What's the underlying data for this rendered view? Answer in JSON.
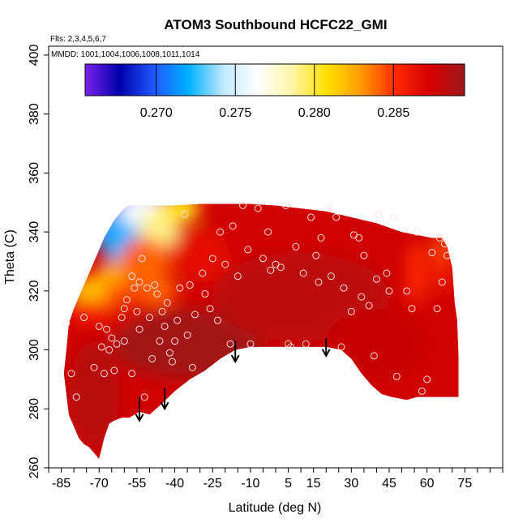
{
  "chart_data": {
    "type": "heatmap",
    "title": "ATOM3 Southbound HCFC22_GMI",
    "flights_note": "Flts: 2,3,4,5,6,7",
    "mmdd_note": "MMDD: 1001,1004,1006,1008,1011,1014",
    "xlabel": "Latitude (deg N)",
    "ylabel": "Theta (C)",
    "xlim": [
      -90,
      90
    ],
    "ylim": [
      260,
      403
    ],
    "x_ticks": [
      -85,
      -70,
      -55,
      -40,
      -25,
      -10,
      5,
      15,
      30,
      45,
      60,
      75
    ],
    "x_tick_labels": [
      "-85",
      "-70",
      "-55",
      "-40",
      "-25",
      "-10",
      "5",
      "15",
      "30",
      "45",
      "60",
      "75"
    ],
    "y_ticks": [
      260,
      280,
      300,
      320,
      340,
      360,
      380,
      400
    ],
    "y_tick_labels": [
      "260",
      "280",
      "300",
      "320",
      "340",
      "360",
      "380",
      "400"
    ],
    "colorbar": {
      "range": [
        0.2655,
        0.2895
      ],
      "ticks": [
        0.27,
        0.275,
        0.28,
        0.285
      ],
      "tick_labels": [
        "0.270",
        "0.275",
        "0.280",
        "0.285"
      ],
      "stops": [
        "#7a22ee",
        "#0000aa",
        "#1e58ff",
        "#00b0ff",
        "#bfe8ff",
        "#ffffff",
        "#fff4a8",
        "#ffe000",
        "#ff9a00",
        "#ff2a00",
        "#d40000",
        "#9e1818"
      ]
    },
    "boundary_top": [
      [
        -82,
        309
      ],
      [
        -80,
        314
      ],
      [
        -78,
        318
      ],
      [
        -76,
        322
      ],
      [
        -74,
        326
      ],
      [
        -72,
        330
      ],
      [
        -70,
        334
      ],
      [
        -68,
        338
      ],
      [
        -66,
        341
      ],
      [
        -64,
        344
      ],
      [
        -62,
        346
      ],
      [
        -60,
        348
      ],
      [
        -58,
        349
      ],
      [
        -50,
        349
      ],
      [
        -40,
        349
      ],
      [
        -30,
        349.5
      ],
      [
        -20,
        349.5
      ],
      [
        -10,
        349.5
      ],
      [
        0,
        349
      ],
      [
        10,
        348
      ],
      [
        20,
        347
      ],
      [
        30,
        345
      ],
      [
        40,
        343
      ],
      [
        50,
        340
      ],
      [
        56,
        339
      ],
      [
        62,
        338
      ],
      [
        66,
        338
      ],
      [
        68,
        335
      ],
      [
        70,
        328
      ],
      [
        71,
        316
      ],
      [
        72,
        310
      ],
      [
        72.5,
        298
      ],
      [
        72.5,
        284
      ]
    ],
    "boundary_bottom": [
      [
        72.5,
        284
      ],
      [
        70,
        284
      ],
      [
        60,
        284
      ],
      [
        56,
        284
      ],
      [
        52,
        283
      ],
      [
        46,
        284
      ],
      [
        42,
        285
      ],
      [
        38,
        288
      ],
      [
        34,
        292
      ],
      [
        30,
        297
      ],
      [
        26,
        300
      ],
      [
        20,
        301
      ],
      [
        10,
        301
      ],
      [
        0,
        301
      ],
      [
        -10,
        301
      ],
      [
        -16,
        300
      ],
      [
        -22,
        297
      ],
      [
        -28,
        293
      ],
      [
        -34,
        290
      ],
      [
        -40,
        286
      ],
      [
        -46,
        281
      ],
      [
        -50,
        278
      ],
      [
        -54,
        279
      ],
      [
        -58,
        277
      ],
      [
        -61,
        277
      ],
      [
        -64,
        276
      ],
      [
        -66,
        275
      ],
      [
        -68,
        270
      ],
      [
        -70,
        263
      ],
      [
        -72,
        265
      ],
      [
        -74,
        267
      ],
      [
        -76,
        268
      ],
      [
        -78,
        270
      ],
      [
        -80,
        274
      ],
      [
        -82,
        278
      ],
      [
        -84,
        292
      ],
      [
        -83,
        300
      ],
      [
        -82,
        309
      ]
    ],
    "blobs": [
      {
        "lat": -67,
        "theta": 351,
        "rx": 20,
        "ry": 14,
        "value": 0.2655
      },
      {
        "lat": -61,
        "theta": 338,
        "rx": 9,
        "ry": 9,
        "value": 0.272
      },
      {
        "lat": -52,
        "theta": 347,
        "rx": 10,
        "ry": 6,
        "value": 0.276
      },
      {
        "lat": -46,
        "theta": 341,
        "rx": 8,
        "ry": 7,
        "value": 0.279
      },
      {
        "lat": -38,
        "theta": 348,
        "rx": 8,
        "ry": 5,
        "value": 0.2805
      },
      {
        "lat": -70,
        "theta": 320,
        "rx": 12,
        "ry": 5,
        "value": 0.2815
      },
      {
        "lat": -64,
        "theta": 324,
        "rx": 8,
        "ry": 6,
        "value": 0.2825
      },
      {
        "lat": -52,
        "theta": 330,
        "rx": 10,
        "ry": 8,
        "value": 0.284
      },
      {
        "lat": -60,
        "theta": 318,
        "rx": 8,
        "ry": 5,
        "value": 0.2845
      },
      {
        "lat": -74,
        "theta": 313,
        "rx": 8,
        "ry": 4,
        "value": 0.2855
      },
      {
        "lat": -46,
        "theta": 320,
        "rx": 7,
        "ry": 5,
        "value": 0.284
      },
      {
        "lat": -30,
        "theta": 332,
        "rx": 12,
        "ry": 9,
        "value": 0.2865
      },
      {
        "lat": -56,
        "theta": 310,
        "rx": 12,
        "ry": 7,
        "value": 0.2868
      },
      {
        "lat": 56,
        "theta": 326,
        "rx": 4,
        "ry": 11,
        "value": 0.2852
      },
      {
        "lat": 66,
        "theta": 333,
        "rx": 4,
        "ry": 6,
        "value": 0.2845
      },
      {
        "lat": 66,
        "theta": 325,
        "rx": 3,
        "ry": 6,
        "value": 0.2855
      },
      {
        "lat": -35,
        "theta": 302,
        "rx": 30,
        "ry": 12,
        "value": 0.2893
      },
      {
        "lat": -72,
        "theta": 285,
        "rx": 10,
        "ry": 18,
        "value": 0.2885
      },
      {
        "lat": 10,
        "theta": 318,
        "rx": 35,
        "ry": 15,
        "value": 0.2883
      },
      {
        "lat": 40,
        "theta": 302,
        "rx": 20,
        "ry": 12,
        "value": 0.2878
      }
    ],
    "points": [
      [
        -83,
        309
      ],
      [
        -81,
        292
      ],
      [
        -79,
        284
      ],
      [
        -76,
        311
      ],
      [
        -72,
        294
      ],
      [
        -70,
        308
      ],
      [
        -69,
        301
      ],
      [
        -68,
        292
      ],
      [
        -67,
        307
      ],
      [
        -66,
        300
      ],
      [
        -65,
        304
      ],
      [
        -64,
        293
      ],
      [
        -63,
        302
      ],
      [
        -61,
        311
      ],
      [
        -60,
        314
      ],
      [
        -60,
        303
      ],
      [
        -59,
        317
      ],
      [
        -57,
        325
      ],
      [
        -57,
        292
      ],
      [
        -56,
        321
      ],
      [
        -55,
        313
      ],
      [
        -54,
        323
      ],
      [
        -54,
        307
      ],
      [
        -53,
        331
      ],
      [
        -52,
        284
      ],
      [
        -51,
        321
      ],
      [
        -50,
        311
      ],
      [
        -49,
        297
      ],
      [
        -48,
        322
      ],
      [
        -47,
        319
      ],
      [
        -46,
        303
      ],
      [
        -45,
        313
      ],
      [
        -44,
        308
      ],
      [
        -43,
        316
      ],
      [
        -42,
        299
      ],
      [
        -41,
        296
      ],
      [
        -40,
        303
      ],
      [
        -39,
        310
      ],
      [
        -38,
        321
      ],
      [
        -36,
        346
      ],
      [
        -35,
        305
      ],
      [
        -34,
        322
      ],
      [
        -33,
        294
      ],
      [
        -32,
        312
      ],
      [
        -29,
        326
      ],
      [
        -28,
        319
      ],
      [
        -26,
        314
      ],
      [
        -25,
        331
      ],
      [
        -23,
        310
      ],
      [
        -22,
        340
      ],
      [
        -20,
        329
      ],
      [
        -18,
        302
      ],
      [
        -17,
        342
      ],
      [
        -15,
        325
      ],
      [
        -13,
        349
      ],
      [
        -11,
        334
      ],
      [
        -10,
        302
      ],
      [
        -7,
        348
      ],
      [
        -5,
        331
      ],
      [
        -3,
        340
      ],
      [
        -2,
        327
      ],
      [
        0,
        329
      ],
      [
        2,
        328
      ],
      [
        4,
        349
      ],
      [
        5,
        302
      ],
      [
        6,
        301
      ],
      [
        8,
        335
      ],
      [
        11,
        326
      ],
      [
        12,
        302
      ],
      [
        14,
        345
      ],
      [
        16,
        332
      ],
      [
        17,
        323
      ],
      [
        18,
        338
      ],
      [
        21,
        348
      ],
      [
        22,
        325
      ],
      [
        24,
        345
      ],
      [
        26,
        301
      ],
      [
        27,
        321
      ],
      [
        30,
        313
      ],
      [
        31,
        339
      ],
      [
        33,
        338
      ],
      [
        34,
        318
      ],
      [
        35,
        332
      ],
      [
        37,
        315
      ],
      [
        39,
        298
      ],
      [
        40,
        324
      ],
      [
        41,
        346
      ],
      [
        44,
        326
      ],
      [
        45,
        320
      ],
      [
        47,
        345
      ],
      [
        48,
        291
      ],
      [
        52,
        320
      ],
      [
        54,
        314
      ],
      [
        56,
        340
      ],
      [
        58,
        286
      ],
      [
        60,
        290
      ],
      [
        62,
        333
      ],
      [
        64,
        314
      ],
      [
        65,
        338
      ],
      [
        66,
        323
      ],
      [
        67,
        336
      ],
      [
        68,
        332
      ]
    ],
    "arrows": [
      {
        "lat": -54,
        "theta_from": 284,
        "theta_to": 276
      },
      {
        "lat": -44,
        "theta_from": 287,
        "theta_to": 280
      },
      {
        "lat": -16,
        "theta_from": 303,
        "theta_to": 296
      },
      {
        "lat": 20,
        "theta_from": 304,
        "theta_to": 298
      }
    ]
  }
}
